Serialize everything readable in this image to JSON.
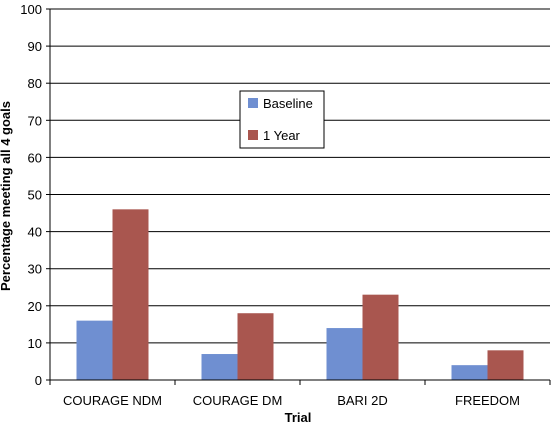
{
  "chart_data": {
    "type": "bar",
    "title": "",
    "xlabel": "Trial",
    "ylabel": "Percentage meeting all 4 goals",
    "ylim": [
      0,
      100
    ],
    "yticks": [
      0,
      10,
      20,
      30,
      40,
      50,
      60,
      70,
      80,
      90,
      100
    ],
    "grid": true,
    "legend_position": "upper-center",
    "categories": [
      "COURAGE NDM",
      "COURAGE DM",
      "BARI 2D",
      "FREEDOM"
    ],
    "series": [
      {
        "name": "Baseline",
        "color": "#6f8fd1",
        "values": [
          16,
          7,
          14,
          4
        ]
      },
      {
        "name": "1 Year",
        "color": "#a9564f",
        "values": [
          46,
          18,
          23,
          8
        ]
      }
    ]
  }
}
